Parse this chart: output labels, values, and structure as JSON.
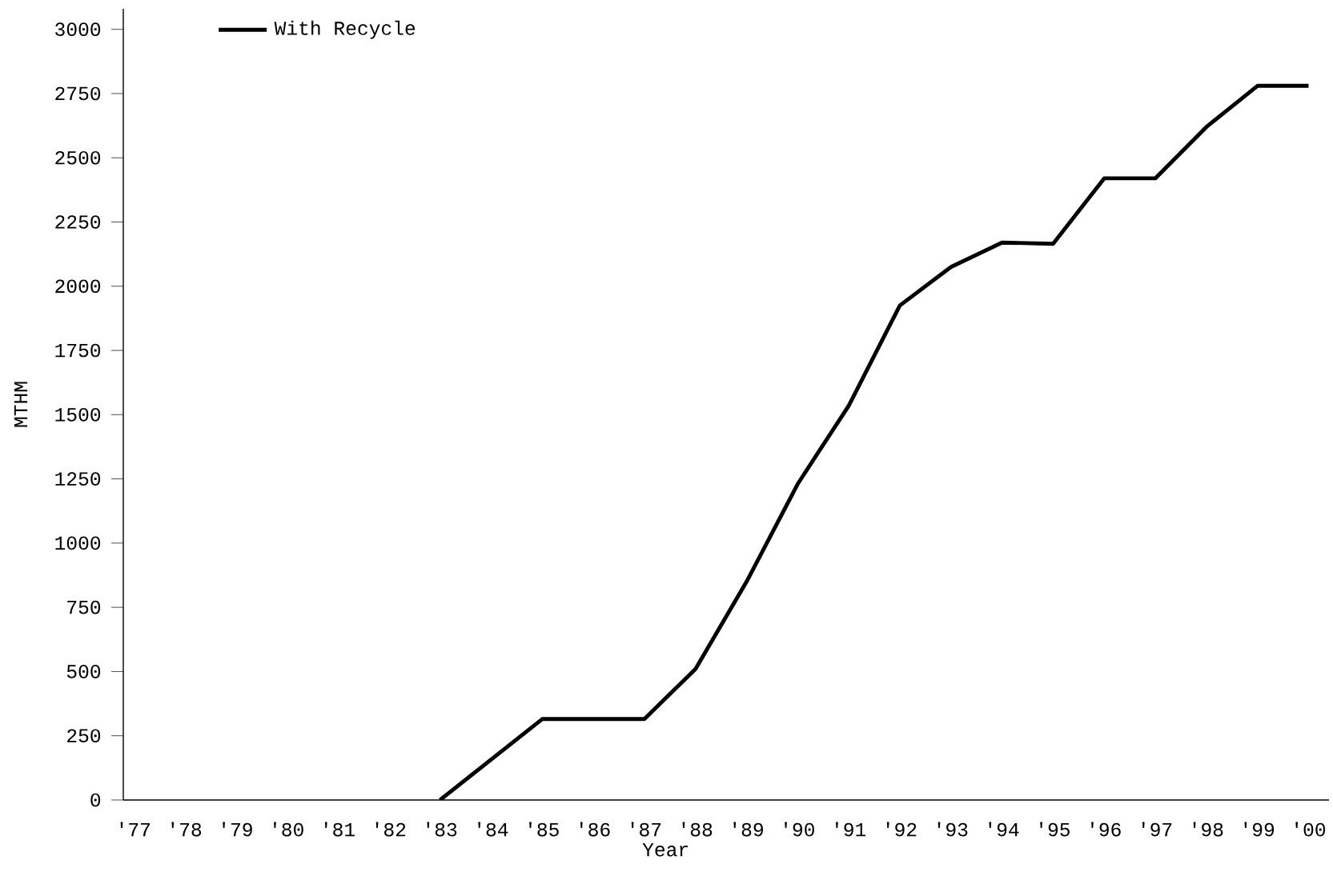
{
  "chart_data": {
    "type": "line",
    "xlabel": "Year",
    "ylabel": "MTHM",
    "x": [
      1983,
      1985,
      1987,
      1988,
      1989,
      1990,
      1991,
      1992,
      1993,
      1994,
      1995,
      1996,
      1997,
      1998,
      1999,
      2000
    ],
    "series": [
      {
        "name": "With Recycle",
        "color": "#000000",
        "values": [
          0,
          315,
          315,
          510,
          850,
          1230,
          1535,
          1925,
          2075,
          2170,
          2165,
          2420,
          2420,
          2620,
          2780,
          2780
        ]
      }
    ],
    "xlim": [
      1976.8,
      2000.4
    ],
    "ylim": [
      0,
      3080
    ],
    "xticks": [
      {
        "value": 1977,
        "label": "'77"
      },
      {
        "value": 1978,
        "label": "'78"
      },
      {
        "value": 1979,
        "label": "'79"
      },
      {
        "value": 1980,
        "label": "'80"
      },
      {
        "value": 1981,
        "label": "'81"
      },
      {
        "value": 1982,
        "label": "'82"
      },
      {
        "value": 1983,
        "label": "'83"
      },
      {
        "value": 1984,
        "label": "'84"
      },
      {
        "value": 1985,
        "label": "'85"
      },
      {
        "value": 1986,
        "label": "'86"
      },
      {
        "value": 1987,
        "label": "'87"
      },
      {
        "value": 1988,
        "label": "'88"
      },
      {
        "value": 1989,
        "label": "'89"
      },
      {
        "value": 1990,
        "label": "'90"
      },
      {
        "value": 1991,
        "label": "'91"
      },
      {
        "value": 1992,
        "label": "'92"
      },
      {
        "value": 1993,
        "label": "'93"
      },
      {
        "value": 1994,
        "label": "'94"
      },
      {
        "value": 1995,
        "label": "'95"
      },
      {
        "value": 1996,
        "label": "'96"
      },
      {
        "value": 1997,
        "label": "'97"
      },
      {
        "value": 1998,
        "label": "'98"
      },
      {
        "value": 1999,
        "label": "'99"
      },
      {
        "value": 2000,
        "label": "'00"
      }
    ],
    "yticks": [
      0,
      250,
      500,
      750,
      1000,
      1250,
      1500,
      1750,
      2000,
      2250,
      2500,
      2750,
      3000
    ],
    "legend": "top left",
    "grid": false,
    "marker": "none",
    "line_style": "solid"
  }
}
